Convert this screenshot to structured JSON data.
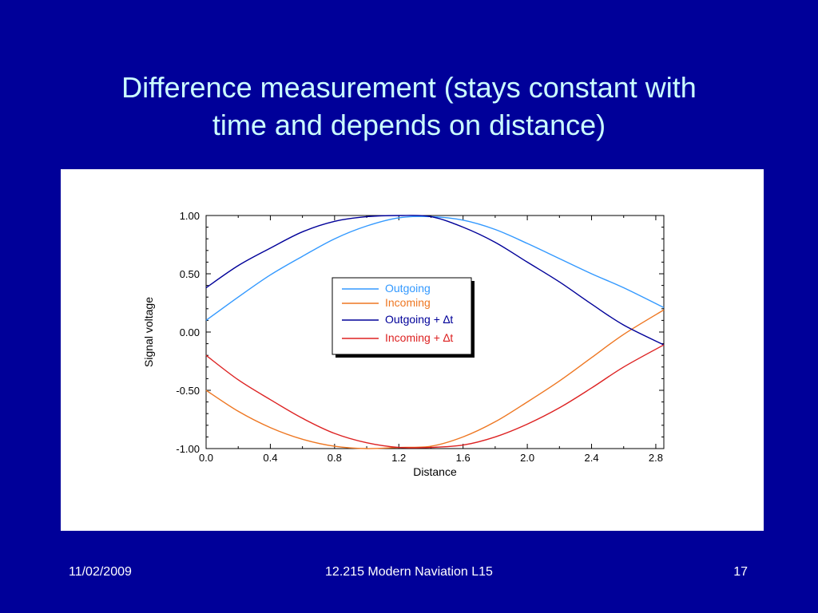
{
  "slide": {
    "title_line1": "Difference measurement (stays constant with",
    "title_line2": "time and depends on distance)",
    "background": "#000099",
    "title_color": "#ccffff"
  },
  "footer": {
    "date": "11/02/2009",
    "course": "12.215 Modern Naviation L15",
    "page": "17"
  },
  "chart_data": {
    "type": "line",
    "title": "",
    "xlabel": "Distance",
    "ylabel": "Signal voltage",
    "xlim": [
      0.0,
      2.85
    ],
    "ylim": [
      -1.0,
      1.0
    ],
    "xticks": [
      "0.0",
      "0.4",
      "0.8",
      "1.2",
      "1.6",
      "2.0",
      "2.4",
      "2.8"
    ],
    "xtick_values": [
      0.0,
      0.4,
      0.8,
      1.2,
      1.6,
      2.0,
      2.4,
      2.8
    ],
    "yticks": [
      "1.00",
      "0.50",
      "0.00",
      "-0.50",
      "-1.00"
    ],
    "ytick_values": [
      1.0,
      0.5,
      0.0,
      -0.5,
      -1.0
    ],
    "grid": false,
    "legend_position": "center",
    "x": [
      0.0,
      0.2,
      0.4,
      0.6,
      0.8,
      1.0,
      1.2,
      1.4,
      1.6,
      1.8,
      2.0,
      2.2,
      2.4,
      2.6,
      2.85
    ],
    "series": [
      {
        "name": "Outgoing",
        "color": "#3399ff",
        "values": [
          0.1,
          0.3,
          0.49,
          0.65,
          0.8,
          0.91,
          0.98,
          0.99,
          0.96,
          0.88,
          0.76,
          0.63,
          0.5,
          0.38,
          0.21
        ]
      },
      {
        "name": "Incoming",
        "color": "#ee7722",
        "values": [
          -0.5,
          -0.68,
          -0.82,
          -0.92,
          -0.98,
          -1.0,
          -0.99,
          -0.98,
          -0.9,
          -0.77,
          -0.6,
          -0.42,
          -0.22,
          -0.02,
          0.19
        ]
      },
      {
        "name": "Outgoing + ∆t",
        "color": "#000099",
        "values": [
          0.38,
          0.57,
          0.72,
          0.86,
          0.95,
          0.99,
          1.0,
          0.99,
          0.9,
          0.77,
          0.6,
          0.43,
          0.24,
          0.06,
          -0.11
        ]
      },
      {
        "name": "Incoming + ∆t",
        "color": "#dd2222",
        "values": [
          -0.2,
          -0.41,
          -0.58,
          -0.74,
          -0.87,
          -0.95,
          -0.99,
          -0.99,
          -0.97,
          -0.9,
          -0.79,
          -0.65,
          -0.48,
          -0.3,
          -0.11
        ]
      }
    ]
  }
}
